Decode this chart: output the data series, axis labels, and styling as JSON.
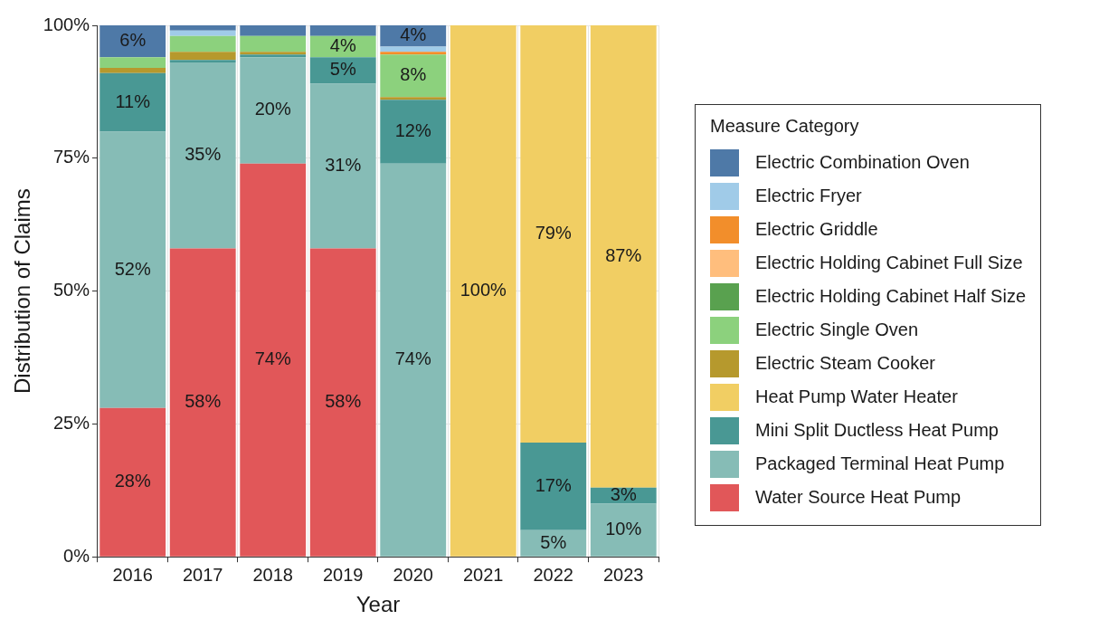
{
  "chart_data": {
    "type": "bar",
    "stacked": true,
    "xlabel": "Year",
    "ylabel": "Distribution of Claims",
    "legend_title": "Measure Category",
    "legend": "right",
    "grid": true,
    "categories": [
      "2016",
      "2017",
      "2018",
      "2019",
      "2020",
      "2021",
      "2022",
      "2023"
    ],
    "ylim": [
      0,
      100
    ],
    "yticks": [
      {
        "value": 0,
        "label": "0%"
      },
      {
        "value": 25,
        "label": "25%"
      },
      {
        "value": 50,
        "label": "50%"
      },
      {
        "value": 75,
        "label": "75%"
      },
      {
        "value": 100,
        "label": "100%"
      }
    ],
    "series": [
      {
        "name": "Water Source Heat Pump",
        "color": "#e15759",
        "values": [
          28,
          58,
          74,
          58,
          0,
          0,
          0,
          0
        ],
        "value_labels": [
          "28%",
          "58%",
          "74%",
          "58%",
          null,
          null,
          null,
          null
        ]
      },
      {
        "name": "Packaged Terminal Heat Pump",
        "color": "#86bcb6",
        "values": [
          52,
          35,
          20,
          31,
          74,
          0,
          5,
          10
        ],
        "value_labels": [
          "52%",
          "35%",
          "20%",
          "31%",
          "74%",
          null,
          "5%",
          "10%"
        ]
      },
      {
        "name": "Mini Split Ductless Heat Pump",
        "color": "#499894",
        "values": [
          11,
          0.5,
          0.5,
          5,
          12,
          0,
          16.5,
          3
        ],
        "value_labels": [
          "11%",
          null,
          null,
          "5%",
          "12%",
          null,
          "17%",
          "3%"
        ]
      },
      {
        "name": "Heat Pump Water Heater",
        "color": "#f1ce63",
        "values": [
          0,
          0,
          0,
          0,
          0,
          100,
          78.5,
          87
        ],
        "value_labels": [
          null,
          null,
          null,
          null,
          null,
          "100%",
          "79%",
          "87%"
        ]
      },
      {
        "name": "Electric Steam Cooker",
        "color": "#b6992d",
        "values": [
          1,
          1.5,
          0.5,
          0,
          0.5,
          0,
          0,
          0
        ]
      },
      {
        "name": "Electric Single Oven",
        "color": "#8cd17d",
        "values": [
          2,
          3,
          3,
          4,
          8,
          0,
          0,
          0
        ],
        "value_labels": [
          null,
          null,
          null,
          "4%",
          "8%",
          null,
          null,
          null
        ]
      },
      {
        "name": "Electric Holding Cabinet Half Size",
        "color": "#59a14f",
        "values": [
          0,
          0,
          0,
          0,
          0,
          0,
          0,
          0
        ]
      },
      {
        "name": "Electric Holding Cabinet Full Size",
        "color": "#ffbe7d",
        "values": [
          0,
          0,
          0,
          0,
          0,
          0,
          0,
          0
        ]
      },
      {
        "name": "Electric Griddle",
        "color": "#f28e2b",
        "values": [
          0,
          0,
          0,
          0,
          0.5,
          0,
          0,
          0
        ]
      },
      {
        "name": "Electric Fryer",
        "color": "#a0cbe8",
        "values": [
          0,
          1,
          0,
          0,
          1,
          0,
          0,
          0
        ]
      },
      {
        "name": "Electric Combination Oven",
        "color": "#4e79a7",
        "values": [
          6,
          1,
          2,
          2,
          4,
          0,
          0,
          0
        ],
        "value_labels": [
          "6%",
          null,
          null,
          null,
          "4%",
          null,
          null,
          null
        ]
      }
    ]
  }
}
